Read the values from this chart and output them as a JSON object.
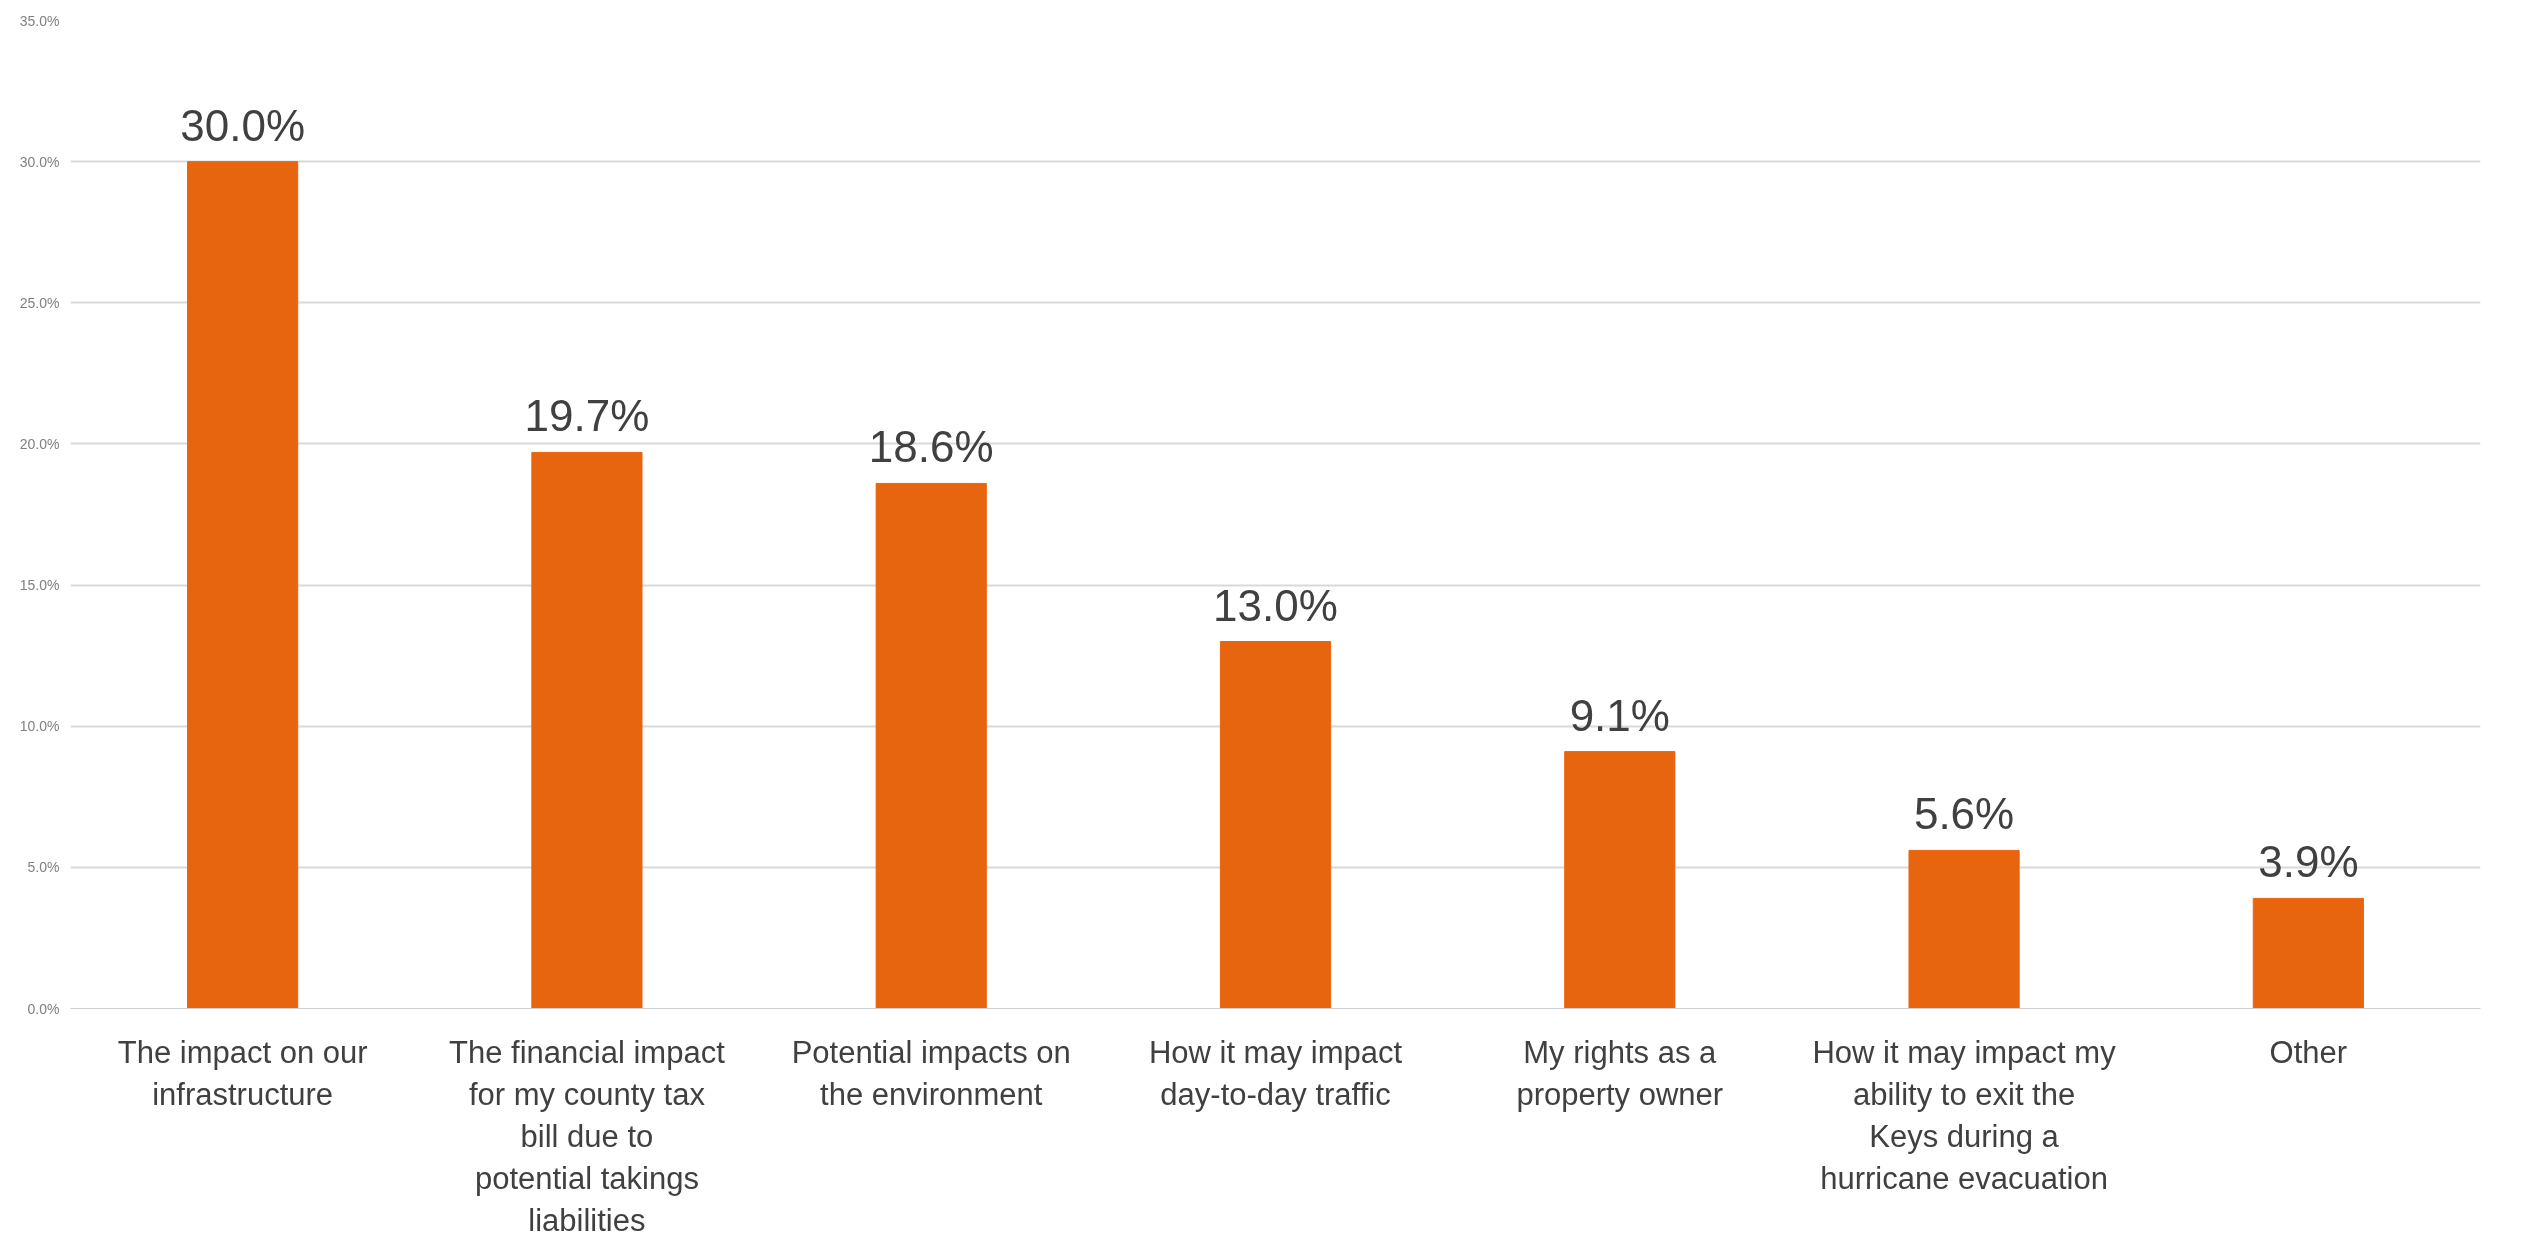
{
  "chart_data": {
    "type": "bar",
    "categories": [
      "The impact on our infrastructure",
      "The financial impact for my county tax bill due to potential takings liabilities",
      "Potential impacts on the environment",
      "How it may impact day-to-day traffic",
      "My rights as a property owner",
      "How it may impact my ability to exit the Keys during a hurricane evacuation",
      "Other"
    ],
    "values": [
      30.0,
      19.7,
      18.6,
      13.0,
      9.1,
      5.6,
      3.9
    ],
    "value_labels": [
      "30.0%",
      "19.7%",
      "18.6%",
      "13.0%",
      "9.1%",
      "5.6%",
      "3.9%"
    ],
    "color": "#e8650f",
    "ylim": [
      0,
      35
    ],
    "yticks": [
      {
        "value": 0,
        "label": "0.0%"
      },
      {
        "value": 5,
        "label": "5.0%"
      },
      {
        "value": 10,
        "label": "10.0%"
      },
      {
        "value": 15,
        "label": "15.0%"
      },
      {
        "value": 20,
        "label": "20.0%"
      },
      {
        "value": 25,
        "label": "25.0%"
      },
      {
        "value": 30,
        "label": "30.0%"
      },
      {
        "value": 35,
        "label": "35.0%"
      }
    ],
    "grid": "y"
  }
}
